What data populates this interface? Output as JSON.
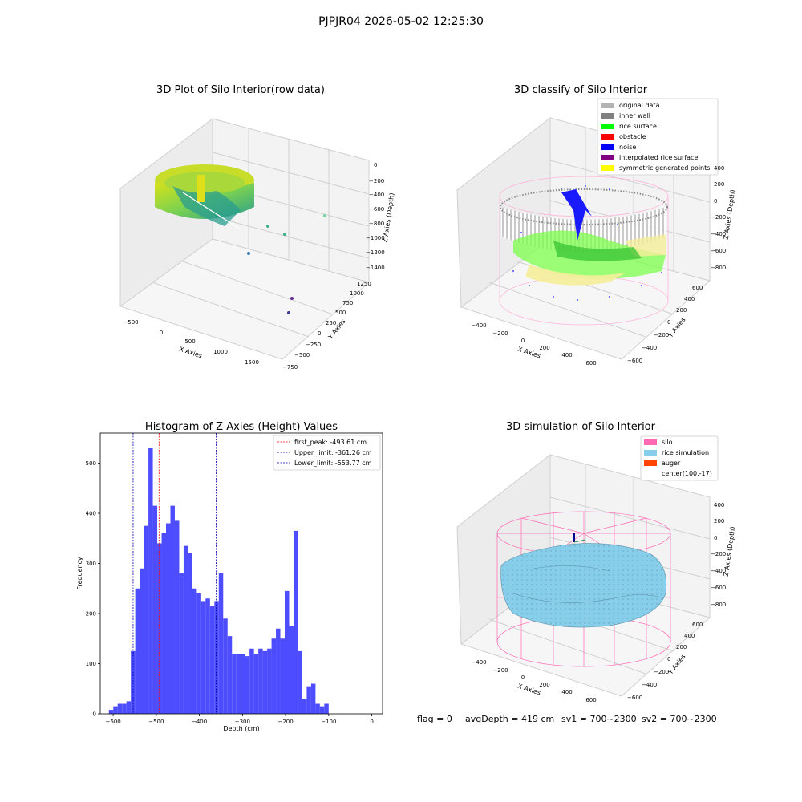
{
  "suptitle": "PJPJR04 2026-05-02 12:25:30",
  "footer": {
    "flag": "flag = 0",
    "avg_depth": "avgDepth = 419 cm",
    "sv1": "sv1 = 700~2300",
    "sv2": "sv2 = 700~2300"
  },
  "colors": {
    "histogram_bar": "#4d4dff",
    "first_peak_line": "#ff0000",
    "limit_line": "#0000aa",
    "pane": "#f2f2f2",
    "silo": "#ff69b4",
    "rice_simulation": "#87ceeb",
    "auger": "#ff4500",
    "original_data": "#b4b4b4",
    "inner_wall": "#808080",
    "rice_surface": "#00ff00",
    "obstacle": "#ff0000",
    "noise": "#0000ff",
    "interpolated_rice_surface": "#800080",
    "symmetric_generated_points": "#ffff00"
  },
  "chart_data": [
    {
      "type": "scatter",
      "title": "3D Plot of Silo Interior(row data)",
      "xlabel": "X Axies",
      "ylabel": "Y Axies",
      "zlabel": "Z Axies (Depth)",
      "x_ticks": [
        "−500",
        "0",
        "500",
        "1000",
        "1500"
      ],
      "y_ticks": [
        "−750",
        "−500",
        "−250",
        "0",
        "250",
        "500",
        "750",
        "1000",
        "1250"
      ],
      "z_ticks": [
        "0",
        "−200",
        "−400",
        "−600",
        "−800",
        "−1000",
        "−1200",
        "−1400"
      ]
    },
    {
      "type": "scatter",
      "title": "3D classify of Silo Interior",
      "xlabel": "X Axies",
      "ylabel": "Y Axies",
      "zlabel": "Z Axies (Depth)",
      "x_ticks": [
        "−400",
        "−200",
        "0",
        "200",
        "400",
        "600"
      ],
      "y_ticks": [
        "−600",
        "−400",
        "−200",
        "0",
        "200",
        "400",
        "600"
      ],
      "z_ticks": [
        "400",
        "200",
        "0",
        "−200",
        "−400",
        "−600",
        "−800"
      ],
      "legend": [
        "original data",
        "inner wall",
        "rice surface",
        "obstacle",
        "noise",
        "interpolated rice surface",
        "symmetric generated points"
      ],
      "legend_position": "top-right"
    },
    {
      "type": "bar",
      "title": "Histogram of Z-Axies (Height) Values",
      "xlabel": "Depth (cm)",
      "ylabel": "Frequency",
      "xlim": [
        -630,
        25
      ],
      "ylim": [
        0,
        560
      ],
      "x_ticks": [
        "−600",
        "−500",
        "−400",
        "−300",
        "−200",
        "−100",
        "0"
      ],
      "x_tick_values": [
        -600,
        -500,
        -400,
        -300,
        -200,
        -100,
        0
      ],
      "y_ticks": [
        "0",
        "100",
        "200",
        "300",
        "400",
        "500"
      ],
      "y_tick_values": [
        0,
        100,
        200,
        300,
        400,
        500
      ],
      "bin_start": -610,
      "bin_width": 10.2,
      "values": [
        8,
        15,
        20,
        20,
        25,
        125,
        250,
        290,
        375,
        530,
        415,
        340,
        360,
        380,
        415,
        385,
        280,
        335,
        320,
        250,
        240,
        225,
        230,
        215,
        225,
        280,
        190,
        155,
        120,
        120,
        120,
        115,
        130,
        120,
        130,
        125,
        130,
        150,
        170,
        150,
        245,
        175,
        365,
        125,
        30,
        55,
        60,
        20,
        15,
        20
      ],
      "reference_lines": [
        {
          "name": "first_peak: -493.61 cm",
          "x": -493.61,
          "style": "first_peak"
        },
        {
          "name": "Upper_limit: -361.26 cm",
          "x": -361.26,
          "style": "limit"
        },
        {
          "name": "Lower_limit: -553.77 cm",
          "x": -553.77,
          "style": "limit"
        }
      ],
      "legend_position": "top-right"
    },
    {
      "type": "scatter",
      "title": "3D simulation of Silo Interior",
      "xlabel": "X Axies",
      "ylabel": "Y Axies",
      "zlabel": "Z Axies (Depth)",
      "x_ticks": [
        "−400",
        "−200",
        "0",
        "200",
        "400",
        "600"
      ],
      "y_ticks": [
        "−600",
        "−400",
        "−200",
        "0",
        "200",
        "400",
        "600"
      ],
      "z_ticks": [
        "400",
        "200",
        "0",
        "−200",
        "−400",
        "−600",
        "−800"
      ],
      "legend": [
        "silo",
        "rice simulation",
        "auger",
        "center(100,-17)"
      ],
      "legend_position": "top-right"
    }
  ]
}
